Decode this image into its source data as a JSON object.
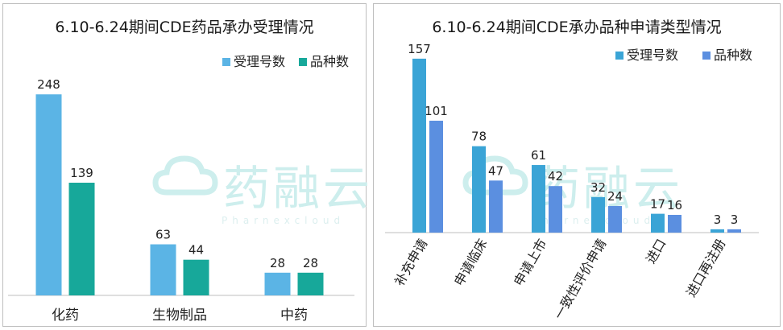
{
  "chart_data": [
    {
      "type": "bar",
      "title": "6.10-6.24期间CDE药品承办受理情况",
      "categories": [
        "化药",
        "生物制品",
        "中药"
      ],
      "series": [
        {
          "name": "受理号数",
          "values": [
            248,
            63,
            28
          ]
        },
        {
          "name": "品种数",
          "values": [
            139,
            44,
            28
          ]
        }
      ],
      "ylim": [
        0,
        280
      ],
      "grid": false,
      "legend_position": "top-right",
      "colors": [
        "#5bb4e5",
        "#17a89a"
      ]
    },
    {
      "type": "bar",
      "title": "6.10-6.24期间CDE承办品种申请类型情况",
      "categories": [
        "补充申请",
        "申请临床",
        "申请上市",
        "一致性评价申请",
        "进口",
        "进口再注册"
      ],
      "series": [
        {
          "name": "受理号数",
          "values": [
            157,
            78,
            61,
            32,
            17,
            3
          ]
        },
        {
          "name": "品种数",
          "values": [
            101,
            47,
            42,
            24,
            16,
            3
          ]
        }
      ],
      "ylim": [
        0,
        170
      ],
      "grid": false,
      "legend_position": "top-right",
      "colors": [
        "#3aa4d6",
        "#5b8fe0"
      ]
    }
  ],
  "watermark": {
    "text": "药融云",
    "subtext": "Pharnexcloud",
    "color": "#cdeeed"
  }
}
